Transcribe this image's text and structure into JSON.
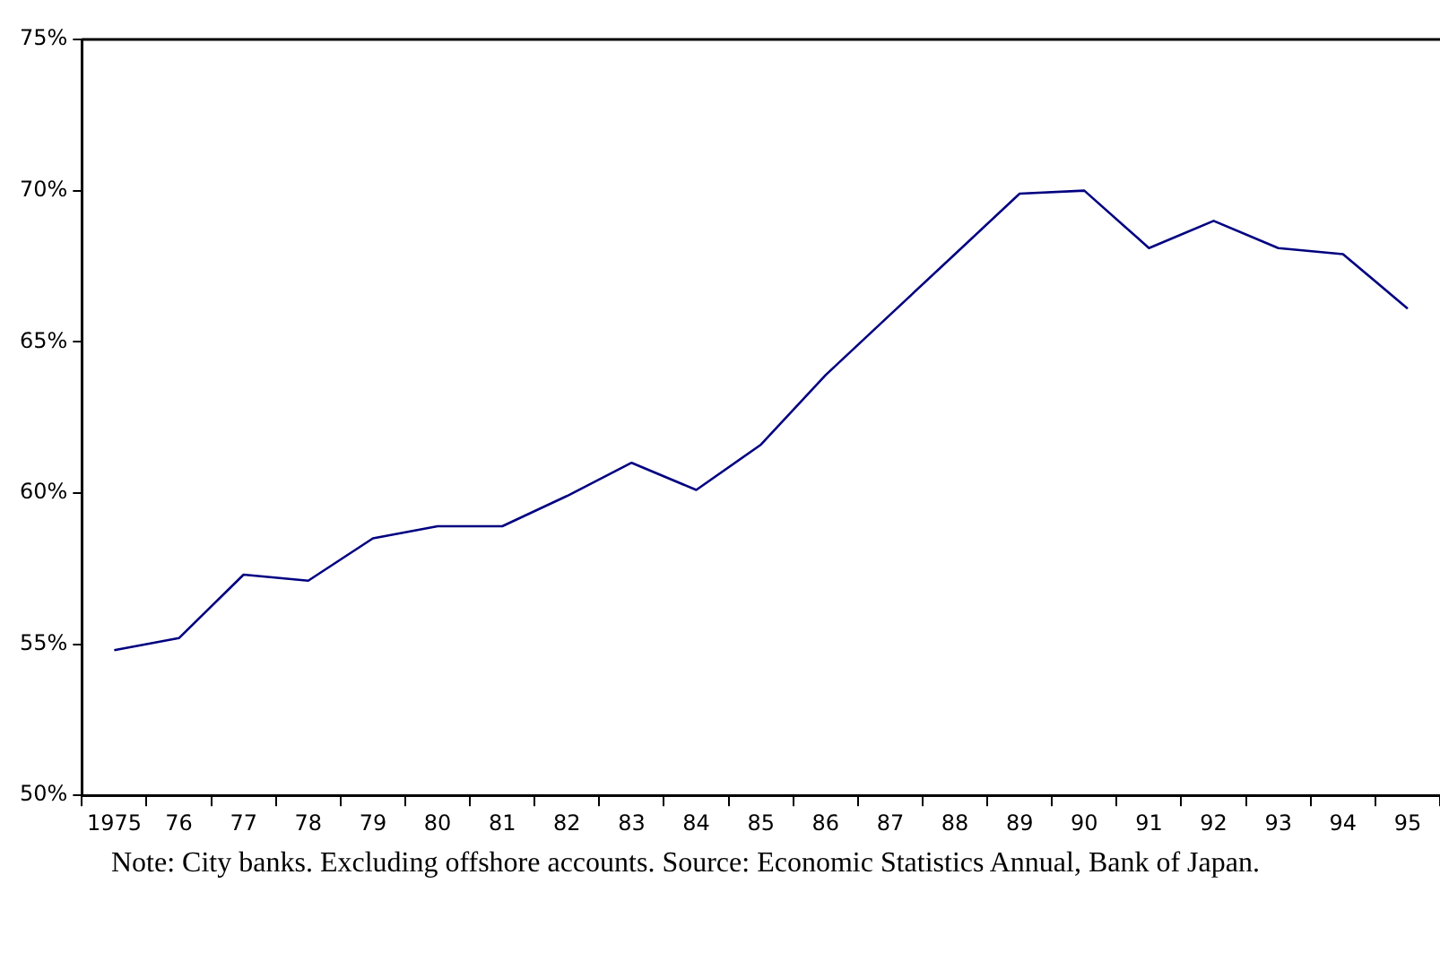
{
  "chart_data": {
    "type": "line",
    "categories": [
      "1975",
      "76",
      "77",
      "78",
      "79",
      "80",
      "81",
      "82",
      "83",
      "84",
      "85",
      "86",
      "87",
      "88",
      "89",
      "90",
      "91",
      "92",
      "93",
      "94",
      "95"
    ],
    "series": [
      {
        "color": "#000080",
        "values": [
          54.8,
          55.2,
          57.3,
          57.1,
          58.5,
          58.9,
          58.9,
          59.9,
          61.0,
          60.1,
          61.6,
          63.9,
          65.9,
          67.9,
          69.9,
          70.0,
          68.1,
          69.0,
          68.1,
          67.9,
          66.1
        ]
      }
    ],
    "ylim": [
      50,
      75
    ],
    "yticks": [
      {
        "value": 50,
        "label": "50%"
      },
      {
        "value": 55,
        "label": "55%"
      },
      {
        "value": 60,
        "label": "60%"
      },
      {
        "value": 65,
        "label": "65%"
      },
      {
        "value": 70,
        "label": "70%"
      },
      {
        "value": 75,
        "label": "75%"
      }
    ],
    "grid": false,
    "legend": false,
    "marker": "none",
    "line_style": "solid",
    "annotations": [
      "Note: City banks. Excluding offshore accounts.  Source: Economic Statistics Annual, Bank of Japan."
    ]
  }
}
